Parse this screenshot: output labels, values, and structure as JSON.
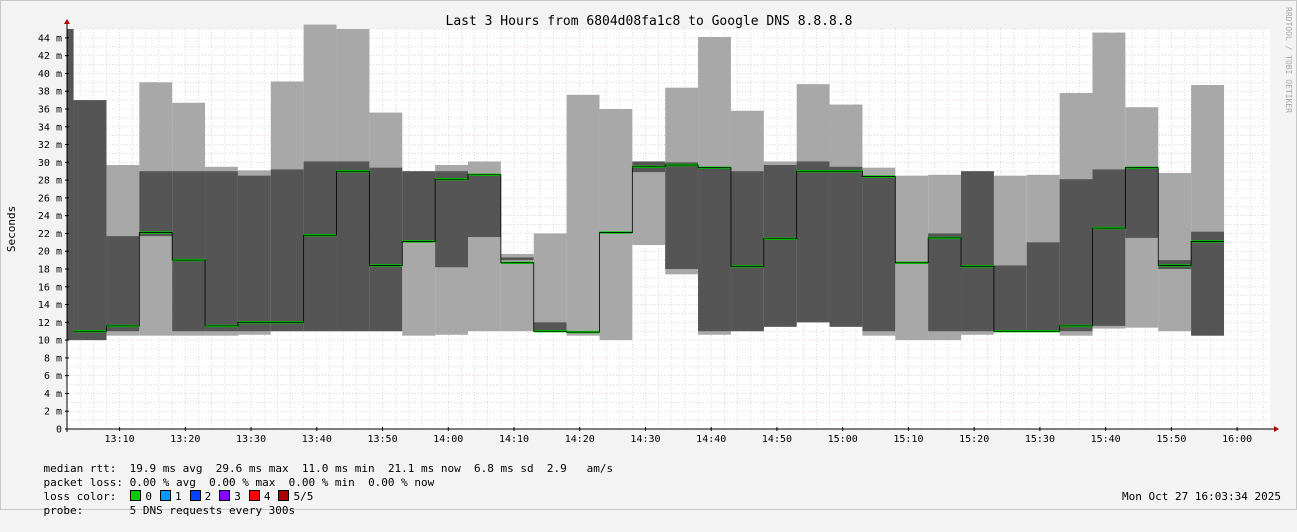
{
  "chart_data": {
    "type": "area",
    "title": "Last 3 Hours from 6804d08fa1c8 to Google DNS 8.8.8.8",
    "ylabel": "Seconds",
    "watermark": "RRDTOOL / TOBI OETIKER",
    "ylim": [
      0,
      45
    ],
    "yunit": "m",
    "y_ticks": [
      0,
      2,
      4,
      6,
      8,
      10,
      12,
      14,
      16,
      18,
      20,
      22,
      24,
      26,
      28,
      30,
      32,
      34,
      36,
      38,
      40,
      42,
      44
    ],
    "y_tick_labels": [
      "0",
      "2 m",
      "4 m",
      "6 m",
      "8 m",
      "10 m",
      "12 m",
      "14 m",
      "16 m",
      "18 m",
      "20 m",
      "22 m",
      "24 m",
      "26 m",
      "28 m",
      "30 m",
      "32 m",
      "34 m",
      "36 m",
      "38 m",
      "40 m",
      "42 m",
      "44 m"
    ],
    "x_start": "13:02",
    "x_end": "16:05",
    "x_tick_labels": [
      "13:10",
      "13:20",
      "13:30",
      "13:40",
      "13:50",
      "14:00",
      "14:10",
      "14:20",
      "14:30",
      "14:40",
      "14:50",
      "15:00",
      "15:10",
      "15:20",
      "15:30",
      "15:40",
      "15:50",
      "16:00"
    ],
    "interval": "5 min",
    "grid": true,
    "series": [
      {
        "name": "smoke",
        "description_values": "per 5-min interval: min, max ping time (outer band) and inner band",
        "intervals": [
          {
            "t": "13:02",
            "min": 10.0,
            "max": 45.0,
            "inner": [
              10.0,
              45.0
            ]
          },
          {
            "t": "13:03",
            "min": 10.0,
            "max": 37.0,
            "inner": [
              10.0,
              37.0
            ]
          },
          {
            "t": "13:08",
            "min": 10.5,
            "max": 29.7,
            "inner": [
              11.0,
              21.7
            ]
          },
          {
            "t": "13:13",
            "min": 10.5,
            "max": 39.0,
            "inner": [
              21.7,
              29.0
            ]
          },
          {
            "t": "13:18",
            "min": 10.5,
            "max": 36.7,
            "inner": [
              11.0,
              29.0
            ]
          },
          {
            "t": "13:23",
            "min": 10.5,
            "max": 29.5,
            "inner": [
              11.0,
              29.0
            ]
          },
          {
            "t": "13:28",
            "min": 10.6,
            "max": 29.1,
            "inner": [
              11.0,
              28.5
            ]
          },
          {
            "t": "13:33",
            "min": 11.0,
            "max": 39.1,
            "inner": [
              11.0,
              29.2
            ]
          },
          {
            "t": "13:38",
            "min": 11.0,
            "max": 45.5,
            "inner": [
              11.0,
              30.1
            ]
          },
          {
            "t": "13:43",
            "min": 11.0,
            "max": 45.0,
            "inner": [
              11.0,
              30.1
            ]
          },
          {
            "t": "13:48",
            "min": 11.0,
            "max": 35.6,
            "inner": [
              11.0,
              29.4
            ]
          },
          {
            "t": "13:53",
            "min": 10.5,
            "max": 29.0,
            "inner": [
              21.0,
              29.0
            ]
          },
          {
            "t": "13:58",
            "min": 10.6,
            "max": 29.7,
            "inner": [
              18.2,
              29.0
            ]
          },
          {
            "t": "14:03",
            "min": 11.0,
            "max": 30.1,
            "inner": [
              21.6,
              28.5
            ]
          },
          {
            "t": "14:08",
            "min": 11.0,
            "max": 19.7,
            "inner": [
              19.0,
              19.3
            ]
          },
          {
            "t": "14:13",
            "min": 11.0,
            "max": 22.0,
            "inner": [
              11.0,
              12.0
            ]
          },
          {
            "t": "14:18",
            "min": 10.5,
            "max": 37.6,
            "inner": [
              11.4,
              11.4
            ]
          },
          {
            "t": "14:23",
            "min": 10.0,
            "max": 36.0,
            "inner": [
              22.0,
              22.0
            ]
          },
          {
            "t": "14:28",
            "min": 20.7,
            "max": 30.1,
            "inner": [
              28.9,
              30.1
            ]
          },
          {
            "t": "14:33",
            "min": 17.4,
            "max": 38.4,
            "inner": [
              18.0,
              30.0
            ]
          },
          {
            "t": "14:38",
            "min": 10.6,
            "max": 44.1,
            "inner": [
              11.0,
              29.5
            ]
          },
          {
            "t": "14:43",
            "min": 11.0,
            "max": 35.8,
            "inner": [
              11.0,
              29.0
            ]
          },
          {
            "t": "14:48",
            "min": 11.5,
            "max": 30.1,
            "inner": [
              11.5,
              29.7
            ]
          },
          {
            "t": "14:53",
            "min": 12.0,
            "max": 38.8,
            "inner": [
              12.0,
              30.1
            ]
          },
          {
            "t": "14:58",
            "min": 11.5,
            "max": 36.5,
            "inner": [
              11.5,
              29.5
            ]
          },
          {
            "t": "15:03",
            "min": 10.5,
            "max": 29.4,
            "inner": [
              11.0,
              28.5
            ]
          },
          {
            "t": "15:08",
            "min": 10.0,
            "max": 28.5,
            "inner": [
              18.6,
              18.6
            ]
          },
          {
            "t": "15:13",
            "min": 10.0,
            "max": 28.6,
            "inner": [
              11.0,
              22.0
            ]
          },
          {
            "t": "15:18",
            "min": 10.6,
            "max": 29.0,
            "inner": [
              11.0,
              29.0
            ]
          },
          {
            "t": "15:23",
            "min": 11.0,
            "max": 28.5,
            "inner": [
              11.0,
              18.4
            ]
          },
          {
            "t": "15:28",
            "min": 11.0,
            "max": 28.6,
            "inner": [
              11.0,
              21.0
            ]
          },
          {
            "t": "15:33",
            "min": 10.5,
            "max": 37.8,
            "inner": [
              11.0,
              28.1
            ]
          },
          {
            "t": "15:38",
            "min": 11.3,
            "max": 44.6,
            "inner": [
              11.6,
              29.2
            ]
          },
          {
            "t": "15:43",
            "min": 11.4,
            "max": 36.2,
            "inner": [
              21.5,
              29.5
            ]
          },
          {
            "t": "15:48",
            "min": 11.0,
            "max": 28.8,
            "inner": [
              18.0,
              19.0
            ]
          },
          {
            "t": "15:53",
            "min": 10.5,
            "max": 38.7,
            "inner": [
              10.5,
              22.2
            ]
          },
          {
            "t": "15:58",
            "min": null,
            "max": null,
            "inner": null
          }
        ]
      },
      {
        "name": "median rtt",
        "color": "#00cc00",
        "values": [
          null,
          11.0,
          11.6,
          22.1,
          19.0,
          11.6,
          12.0,
          12.0,
          21.8,
          29.0,
          18.4,
          21.1,
          28.1,
          28.6,
          18.7,
          11.0,
          10.9,
          22.1,
          29.5,
          29.7,
          29.4,
          18.3,
          21.4,
          29.0,
          29.0,
          28.4,
          18.7,
          21.5,
          18.3,
          11.0,
          11.0,
          11.6,
          22.6,
          29.4,
          18.4,
          21.1,
          null
        ]
      }
    ]
  },
  "legend": {
    "median_rtt": {
      "label": "median rtt:",
      "avg": "19.9 ms avg",
      "max": "29.6 ms max",
      "min": "11.0 ms min",
      "now": "21.1 ms now",
      "sd": "6.8 ms sd",
      "am": "2.9",
      "am_unit": "am/s"
    },
    "packet_loss": {
      "label": "packet loss:",
      "avg": "0.00 % avg",
      "max": "0.00 % max",
      "min": "0.00 % min",
      "now": "0.00 % now"
    },
    "loss_color": {
      "label": "loss color:",
      "items": [
        {
          "label": "0",
          "color": "#00cc00"
        },
        {
          "label": "1",
          "color": "#0099ff"
        },
        {
          "label": "2",
          "color": "#0044ff"
        },
        {
          "label": "3",
          "color": "#8800ff"
        },
        {
          "label": "4",
          "color": "#ff0000"
        },
        {
          "label": "5/5",
          "color": "#aa0000"
        }
      ]
    },
    "probe": {
      "label": "probe:",
      "text": "5 DNS requests every 300s"
    },
    "timestamp": "Mon Oct 27 16:03:34 2025"
  },
  "colors": {
    "outer_band": "#a8a8a8",
    "inner_band": "#555555",
    "median": "#00cc00",
    "grid_minor": "#e4b8b8",
    "axis": "#000000",
    "arrow": "#aa0000"
  }
}
